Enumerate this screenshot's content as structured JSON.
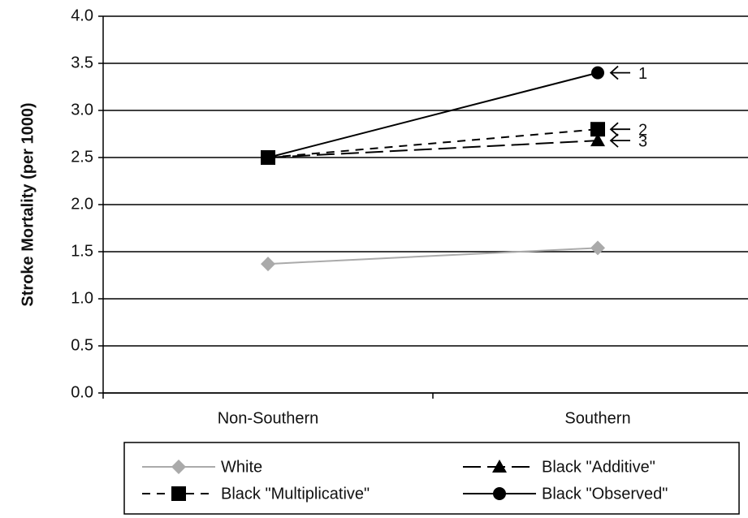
{
  "chart_data": {
    "type": "line",
    "y_label": "Stroke Mortality (per 1000)",
    "categories": [
      "Non-Southern",
      "Southern"
    ],
    "series": [
      {
        "name": "White",
        "color": "#aaaaaa",
        "marker": "diamond",
        "dash": "solid",
        "values": [
          1.37,
          1.54
        ]
      },
      {
        "name": "Black \"Additive\"",
        "color": "#000000",
        "marker": "triangle",
        "dash": "long",
        "values": [
          2.5,
          2.68
        ]
      },
      {
        "name": "Black \"Multiplicative\"",
        "color": "#000000",
        "marker": "square",
        "dash": "short",
        "values": [
          2.5,
          2.8
        ]
      },
      {
        "name": "Black \"Observed\"",
        "color": "#000000",
        "marker": "circle",
        "dash": "solid",
        "values": [
          2.5,
          3.4
        ]
      }
    ],
    "annotations": [
      {
        "text": "1",
        "series": 3
      },
      {
        "text": "2",
        "series": 2
      },
      {
        "text": "3",
        "series": 1
      }
    ],
    "ylim": [
      0,
      4
    ],
    "yticks": [
      {
        "value": 0,
        "label": "0.0"
      },
      0.5,
      {
        "value": 1,
        "label": "1.0"
      },
      1.5,
      {
        "value": 2,
        "label": "2.0"
      },
      2.5,
      {
        "value": 3,
        "label": "3.0"
      },
      3.5,
      {
        "value": 4,
        "label": "4.0"
      }
    ],
    "grid": true
  }
}
